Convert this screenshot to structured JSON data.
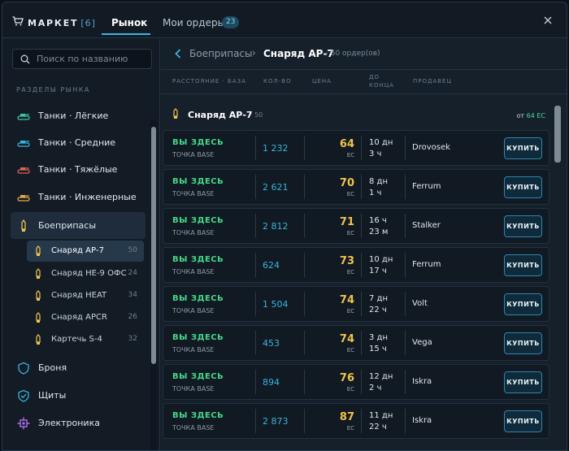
{
  "header": {
    "title": "МАРКЕТ",
    "title_count": "[6]",
    "tabs": [
      {
        "label": "Рынок",
        "active": true
      },
      {
        "label": "Мои ордеры",
        "badge": "23"
      }
    ]
  },
  "sidebar": {
    "search_placeholder": "Поиск по названию",
    "section_label": "РАЗДЕЛЫ РЫНКА",
    "categories": [
      {
        "label": "Танки · Лёгкие",
        "icon": "tank-icon",
        "color": "#3fc9a0"
      },
      {
        "label": "Танки · Средние",
        "icon": "tank-icon",
        "color": "#3ab4df"
      },
      {
        "label": "Танки · Тяжёлые",
        "icon": "tank-icon",
        "color": "#e0625a"
      },
      {
        "label": "Танки · Инженерные",
        "icon": "tank-icon",
        "color": "#e8a94a"
      },
      {
        "label": "Боеприпасы",
        "icon": "ammo-icon",
        "color": "#f0c24e",
        "active": true
      },
      {
        "label": "Броня",
        "icon": "shield-icon",
        "color": "#3ab4df"
      },
      {
        "label": "Щиты",
        "icon": "shield-check-icon",
        "color": "#3ab4df"
      },
      {
        "label": "Электроника",
        "icon": "chip-icon",
        "color": "#b070e8"
      }
    ],
    "subcategories": [
      {
        "label": "Снаряд АР-7",
        "count": "50",
        "active": true
      },
      {
        "label": "Снаряд HE-9 ОФС",
        "count": "24"
      },
      {
        "label": "Снаряд HEAT",
        "count": "34"
      },
      {
        "label": "Снаряд APCR",
        "count": "26"
      },
      {
        "label": "Картечь S-4",
        "count": "32"
      }
    ]
  },
  "main": {
    "breadcrumb": {
      "parent": "Боеприпасы",
      "current": "Снаряд АР-7",
      "count": "50 ордер(ов)"
    },
    "columns": {
      "distance": "РАССТОЯНИЕ · БАЗА",
      "qty": "КОЛ-ВО",
      "price": "ЦЕНА",
      "time_a": "ДО",
      "time_b": "КОНЦА",
      "seller": "ПРОДАВЕЦ"
    },
    "group": {
      "name": "Снаряд АР-7",
      "count": "· 50",
      "min_prefix": "от",
      "min_value": "64 ЕС"
    },
    "rows": [
      {
        "location": "ВЫ ЗДЕСЬ",
        "base": "ТОЧКА BASE",
        "qty": "1 232",
        "price": "64",
        "currency": "ЕС",
        "time1": "10 дн",
        "time2": "3 ч",
        "seller": "Drovosek",
        "buy": "КУПИТЬ"
      },
      {
        "location": "ВЫ ЗДЕСЬ",
        "base": "ТОЧКА BASE",
        "qty": "2 621",
        "price": "70",
        "currency": "ЕС",
        "time1": "8 дн",
        "time2": "1 ч",
        "seller": "Ferrum",
        "buy": "КУПИТЬ"
      },
      {
        "location": "ВЫ ЗДЕСЬ",
        "base": "ТОЧКА BASE",
        "qty": "2 812",
        "price": "71",
        "currency": "ЕС",
        "time1": "16 ч",
        "time2": "23 м",
        "seller": "Stalker",
        "buy": "КУПИТЬ"
      },
      {
        "location": "ВЫ ЗДЕСЬ",
        "base": "ТОЧКА BASE",
        "qty": "624",
        "price": "73",
        "currency": "ЕС",
        "time1": "10 дн",
        "time2": "17 ч",
        "seller": "Ferrum",
        "buy": "КУПИТЬ"
      },
      {
        "location": "ВЫ ЗДЕСЬ",
        "base": "ТОЧКА BASE",
        "qty": "1 504",
        "price": "74",
        "currency": "ЕС",
        "time1": "7 дн",
        "time2": "22 ч",
        "seller": "Volt",
        "buy": "КУПИТЬ"
      },
      {
        "location": "ВЫ ЗДЕСЬ",
        "base": "ТОЧКА BASE",
        "qty": "453",
        "price": "74",
        "currency": "ЕС",
        "time1": "3 дн",
        "time2": "15 ч",
        "seller": "Vega",
        "buy": "КУПИТЬ"
      },
      {
        "location": "ВЫ ЗДЕСЬ",
        "base": "ТОЧКА BASE",
        "qty": "894",
        "price": "76",
        "currency": "ЕС",
        "time1": "12 дн",
        "time2": "2 ч",
        "seller": "Iskra",
        "buy": "КУПИТЬ"
      },
      {
        "location": "ВЫ ЗДЕСЬ",
        "base": "ТОЧКА BASE",
        "qty": "2 873",
        "price": "87",
        "currency": "ЕС",
        "time1": "11 дн",
        "time2": "22 ч",
        "seller": "Iskra",
        "buy": "КУПИТЬ"
      }
    ]
  }
}
